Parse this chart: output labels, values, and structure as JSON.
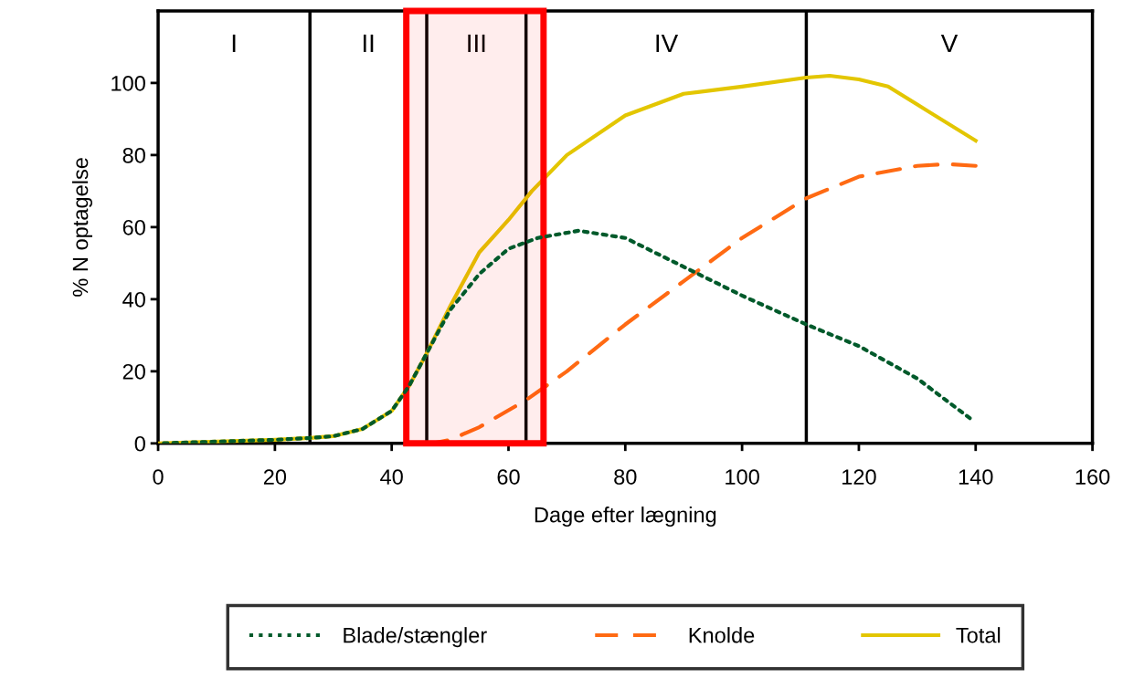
{
  "chart_data": {
    "type": "line",
    "xlabel": "Dage efter lægning",
    "ylabel": "% N optagelse",
    "xlim": [
      0,
      160
    ],
    "xticks": [
      0,
      20,
      40,
      60,
      80,
      100,
      120,
      140,
      160
    ],
    "ylim": [
      0,
      120
    ],
    "yticks": [
      0,
      20,
      40,
      60,
      80,
      100
    ],
    "grid": false,
    "legend": "bottom",
    "marker": "none",
    "series": [
      {
        "name": "Blade/stængler",
        "color": "#005a2b",
        "line_style": "dotted",
        "x": [
          0,
          10,
          20,
          26,
          30,
          35,
          40,
          43,
          46,
          50,
          55,
          60,
          65,
          72,
          80,
          90,
          100,
          111,
          120,
          130,
          139
        ],
        "values": [
          0,
          0.5,
          1,
          1.5,
          2,
          4,
          9,
          16,
          25,
          37,
          47,
          54,
          57,
          59,
          57,
          49,
          41,
          33,
          27,
          18,
          7
        ]
      },
      {
        "name": "Knolde",
        "color": "#ff6a13",
        "line_style": "dashed",
        "x": [
          47,
          50,
          55,
          63,
          70,
          80,
          90,
          100,
          111,
          120,
          130,
          135,
          140
        ],
        "values": [
          0,
          1,
          4.5,
          12,
          20,
          33,
          45,
          57,
          68,
          74,
          77,
          77.5,
          77
        ]
      },
      {
        "name": "Total",
        "color": "#e3c600",
        "line_style": "solid",
        "x": [
          0,
          10,
          20,
          26,
          30,
          35,
          40,
          43,
          46,
          50,
          55,
          60,
          64,
          70,
          80,
          90,
          100,
          111,
          115,
          120,
          125,
          130,
          140
        ],
        "values": [
          0,
          0.5,
          1,
          1.5,
          2,
          4,
          9,
          16,
          25,
          38,
          53,
          62,
          70,
          80,
          91,
          97,
          99,
          101.5,
          102,
          101,
          99,
          94,
          84
        ]
      }
    ],
    "ref_lines": [
      {
        "axis": "x",
        "value": 26,
        "color": "#000000"
      },
      {
        "axis": "x",
        "value": 46,
        "color": "#000000"
      },
      {
        "axis": "x",
        "value": 63,
        "color": "#000000"
      },
      {
        "axis": "x",
        "value": 111,
        "color": "#000000"
      }
    ],
    "bands": [
      {
        "axis": "x",
        "from": 42.5,
        "to": 66,
        "color": "#ff0000"
      }
    ],
    "annotations": [
      "I",
      "II",
      "III",
      "IV",
      "V"
    ]
  }
}
